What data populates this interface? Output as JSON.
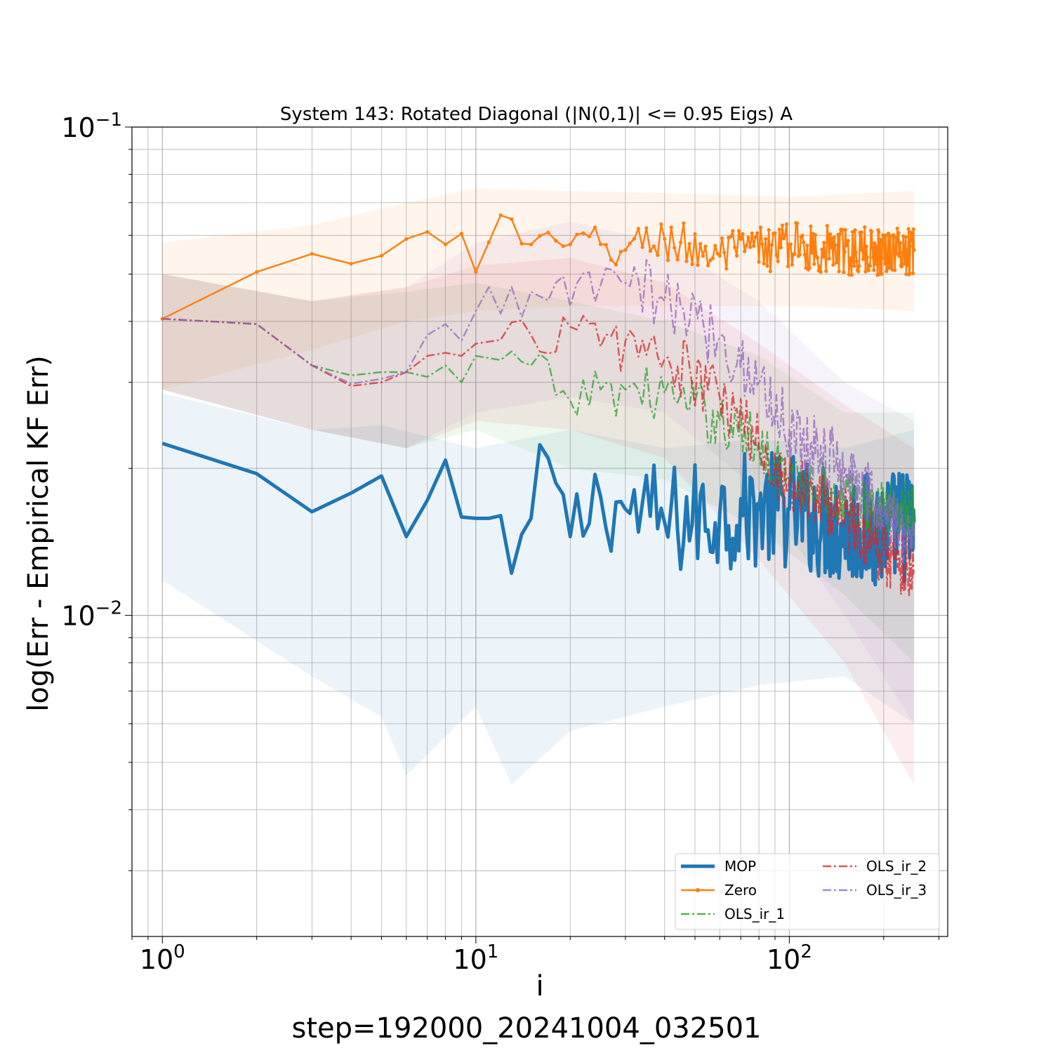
{
  "chart_data": {
    "type": "line",
    "title": "System 143: Rotated Diagonal (|N(0,1)| <= 0.95 Eigs) A",
    "xlabel": "i",
    "ylabel": "log(Err - Empirical KF Err)",
    "footer": "step=192000_20241004_032501",
    "x_scale": "log",
    "y_scale": "log",
    "xlim": [
      0.8,
      320
    ],
    "ylim": [
      0.0022,
      0.1
    ],
    "x_tick_labels": [
      {
        "base": "10",
        "exp": "0",
        "value": 1
      },
      {
        "base": "10",
        "exp": "1",
        "value": 10
      },
      {
        "base": "10",
        "exp": "2",
        "value": 100
      }
    ],
    "y_tick_labels": [
      {
        "base": "10",
        "exp": "−1",
        "value": 0.1
      },
      {
        "base": "10",
        "exp": "−2",
        "value": 0.01
      }
    ],
    "grid": true,
    "legend_position": "lower-right",
    "x_range": [
      1,
      250
    ],
    "series": [
      {
        "name": "MOP",
        "color": "#1f77b4",
        "style": "solid-thick",
        "anchors": [
          [
            1,
            0.0225
          ],
          [
            2,
            0.0195
          ],
          [
            3,
            0.0163
          ],
          [
            4,
            0.0178
          ],
          [
            5,
            0.0193
          ],
          [
            6,
            0.0145
          ],
          [
            7,
            0.0172
          ],
          [
            8,
            0.0208
          ],
          [
            9,
            0.0159
          ],
          [
            10,
            0.0158
          ],
          [
            11,
            0.0158
          ],
          [
            12,
            0.016
          ],
          [
            13,
            0.0122
          ],
          [
            15,
            0.0158
          ],
          [
            17,
            0.021
          ],
          [
            20,
            0.0145
          ],
          [
            25,
            0.0175
          ],
          [
            30,
            0.0165
          ],
          [
            40,
            0.0155
          ],
          [
            60,
            0.0162
          ],
          [
            80,
            0.0165
          ],
          [
            100,
            0.0165
          ],
          [
            150,
            0.015
          ],
          [
            200,
            0.015
          ],
          [
            250,
            0.0155
          ]
        ],
        "band_upper": [
          [
            1,
            0.0285
          ],
          [
            3,
            0.024
          ],
          [
            5,
            0.0245
          ],
          [
            10,
            0.022
          ],
          [
            20,
            0.024
          ],
          [
            40,
            0.022
          ],
          [
            80,
            0.023
          ],
          [
            150,
            0.022
          ],
          [
            250,
            0.024
          ]
        ],
        "band_lower": [
          [
            1,
            0.0118
          ],
          [
            3,
            0.0075
          ],
          [
            5,
            0.0062
          ],
          [
            6,
            0.0047
          ],
          [
            10,
            0.0065
          ],
          [
            13,
            0.0045
          ],
          [
            20,
            0.0058
          ],
          [
            40,
            0.0065
          ],
          [
            80,
            0.0072
          ],
          [
            150,
            0.0075
          ],
          [
            250,
            0.006
          ]
        ],
        "noise": 0.12
      },
      {
        "name": "Zero",
        "color": "#ff7f0e",
        "style": "solid-dot",
        "anchors": [
          [
            1,
            0.0405
          ],
          [
            2,
            0.0505
          ],
          [
            3,
            0.055
          ],
          [
            4,
            0.0525
          ],
          [
            5,
            0.0545
          ],
          [
            6,
            0.059
          ],
          [
            7,
            0.061
          ],
          [
            8,
            0.0575
          ],
          [
            9,
            0.0605
          ],
          [
            10,
            0.0505
          ],
          [
            12,
            0.066
          ],
          [
            15,
            0.0575
          ],
          [
            20,
            0.0575
          ],
          [
            30,
            0.056
          ],
          [
            40,
            0.059
          ],
          [
            60,
            0.0545
          ],
          [
            100,
            0.0575
          ],
          [
            150,
            0.0555
          ],
          [
            250,
            0.056
          ]
        ],
        "band_upper": [
          [
            1,
            0.058
          ],
          [
            3,
            0.063
          ],
          [
            6,
            0.07
          ],
          [
            10,
            0.075
          ],
          [
            20,
            0.074
          ],
          [
            50,
            0.073
          ],
          [
            100,
            0.072
          ],
          [
            250,
            0.074
          ]
        ],
        "band_lower": [
          [
            1,
            0.029
          ],
          [
            3,
            0.035
          ],
          [
            6,
            0.04
          ],
          [
            10,
            0.042
          ],
          [
            20,
            0.043
          ],
          [
            50,
            0.043
          ],
          [
            100,
            0.043
          ],
          [
            250,
            0.042
          ]
        ],
        "noise": 0.05
      },
      {
        "name": "OLS_ir_1",
        "color": "#2ca02c",
        "style": "dashdot",
        "anchors": [
          [
            1,
            0.0405
          ],
          [
            2,
            0.0395
          ],
          [
            3,
            0.0325
          ],
          [
            4,
            0.031
          ],
          [
            5,
            0.0315
          ],
          [
            6,
            0.0315
          ],
          [
            7,
            0.0308
          ],
          [
            8,
            0.0325
          ],
          [
            9,
            0.03
          ],
          [
            10,
            0.034
          ],
          [
            15,
            0.0325
          ],
          [
            20,
            0.0275
          ],
          [
            25,
            0.029
          ],
          [
            30,
            0.029
          ],
          [
            40,
            0.0285
          ],
          [
            60,
            0.025
          ],
          [
            80,
            0.0225
          ],
          [
            100,
            0.019
          ],
          [
            150,
            0.0175
          ],
          [
            200,
            0.0165
          ],
          [
            250,
            0.0165
          ]
        ],
        "band_upper": [
          [
            1,
            0.05
          ],
          [
            3,
            0.044
          ],
          [
            6,
            0.046
          ],
          [
            10,
            0.048
          ],
          [
            20,
            0.044
          ],
          [
            40,
            0.04
          ],
          [
            80,
            0.034
          ],
          [
            150,
            0.026
          ],
          [
            250,
            0.026
          ]
        ],
        "band_lower": [
          [
            1,
            0.029
          ],
          [
            3,
            0.024
          ],
          [
            6,
            0.022
          ],
          [
            10,
            0.024
          ],
          [
            20,
            0.02
          ],
          [
            40,
            0.019
          ],
          [
            80,
            0.015
          ],
          [
            150,
            0.011
          ],
          [
            250,
            0.008
          ]
        ],
        "noise": 0.06
      },
      {
        "name": "OLS_ir_2",
        "color": "#d62728",
        "style": "dashdot",
        "anchors": [
          [
            1,
            0.0405
          ],
          [
            2,
            0.0395
          ],
          [
            3,
            0.0325
          ],
          [
            4,
            0.0295
          ],
          [
            5,
            0.03
          ],
          [
            6,
            0.0315
          ],
          [
            7,
            0.034
          ],
          [
            8,
            0.0345
          ],
          [
            9,
            0.034
          ],
          [
            10,
            0.036
          ],
          [
            15,
            0.0375
          ],
          [
            20,
            0.039
          ],
          [
            25,
            0.0355
          ],
          [
            30,
            0.0365
          ],
          [
            40,
            0.0335
          ],
          [
            60,
            0.028
          ],
          [
            80,
            0.022
          ],
          [
            100,
            0.019
          ],
          [
            150,
            0.016
          ],
          [
            200,
            0.0135
          ],
          [
            250,
            0.0125
          ]
        ],
        "band_upper": [
          [
            1,
            0.05
          ],
          [
            3,
            0.044
          ],
          [
            6,
            0.047
          ],
          [
            10,
            0.052
          ],
          [
            20,
            0.054
          ],
          [
            40,
            0.048
          ],
          [
            80,
            0.036
          ],
          [
            150,
            0.027
          ],
          [
            250,
            0.022
          ]
        ],
        "band_lower": [
          [
            1,
            0.029
          ],
          [
            3,
            0.024
          ],
          [
            6,
            0.022
          ],
          [
            10,
            0.025
          ],
          [
            20,
            0.024
          ],
          [
            40,
            0.021
          ],
          [
            80,
            0.013
          ],
          [
            150,
            0.008
          ],
          [
            250,
            0.0045
          ]
        ],
        "noise": 0.07
      },
      {
        "name": "OLS_ir_3",
        "color": "#9467bd",
        "style": "dashdot",
        "anchors": [
          [
            1,
            0.0405
          ],
          [
            2,
            0.0395
          ],
          [
            3,
            0.0325
          ],
          [
            4,
            0.0298
          ],
          [
            5,
            0.0305
          ],
          [
            6,
            0.0315
          ],
          [
            7,
            0.0375
          ],
          [
            8,
            0.0395
          ],
          [
            9,
            0.0365
          ],
          [
            10,
            0.042
          ],
          [
            11,
            0.047
          ],
          [
            12,
            0.0415
          ],
          [
            15,
            0.046
          ],
          [
            18,
            0.048
          ],
          [
            20,
            0.043
          ],
          [
            25,
            0.0475
          ],
          [
            30,
            0.048
          ],
          [
            40,
            0.044
          ],
          [
            60,
            0.037
          ],
          [
            80,
            0.03
          ],
          [
            100,
            0.024
          ],
          [
            150,
            0.02
          ],
          [
            200,
            0.016
          ],
          [
            250,
            0.0145
          ]
        ],
        "band_upper": [
          [
            1,
            0.05
          ],
          [
            3,
            0.044
          ],
          [
            6,
            0.047
          ],
          [
            10,
            0.058
          ],
          [
            20,
            0.064
          ],
          [
            40,
            0.058
          ],
          [
            80,
            0.044
          ],
          [
            150,
            0.03
          ],
          [
            250,
            0.025
          ]
        ],
        "band_lower": [
          [
            1,
            0.029
          ],
          [
            3,
            0.024
          ],
          [
            6,
            0.022
          ],
          [
            10,
            0.026
          ],
          [
            20,
            0.028
          ],
          [
            40,
            0.026
          ],
          [
            80,
            0.018
          ],
          [
            150,
            0.01
          ],
          [
            250,
            0.006
          ]
        ],
        "noise": 0.07
      }
    ]
  }
}
